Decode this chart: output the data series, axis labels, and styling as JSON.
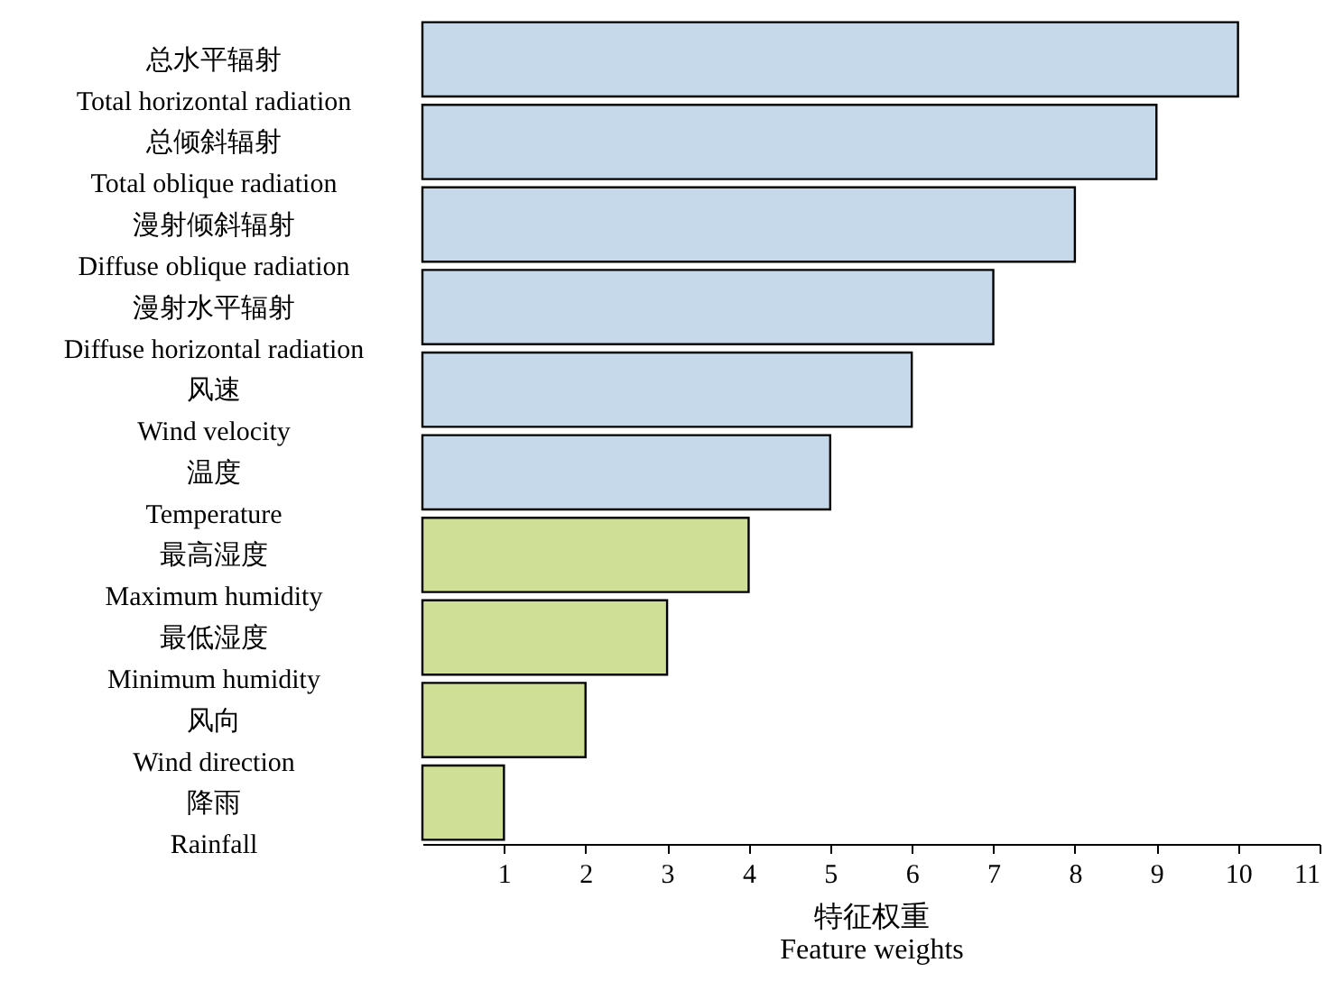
{
  "chart_data": {
    "type": "bar",
    "orientation": "horizontal",
    "categories": [
      "总水平辐射\nTotal horizontal radiation",
      "总倾斜辐射\nTotal oblique radiation",
      "漫射倾斜辐射\nDiffuse oblique radiation",
      "漫射水平辐射\nDiffuse horizontal radiation",
      "风速\nWind velocity",
      "温度\nTemperature",
      "最高湿度\nMaximum humidity",
      "最低湿度\nMinimum humidity",
      "风向\nWind direction",
      "降雨\nRainfall"
    ],
    "values": [
      10,
      9,
      8,
      7,
      6,
      5,
      4,
      3,
      2,
      1
    ],
    "colors": [
      "#c5d9ea",
      "#c5d9ea",
      "#c5d9ea",
      "#c5d9ea",
      "#c5d9ea",
      "#c5d9ea",
      "#d0df96",
      "#d0df96",
      "#d0df96",
      "#d0df96"
    ],
    "xlabel": "特征权重\nFeature weights",
    "xlim": [
      0,
      11
    ],
    "xticks": [
      1,
      2,
      3,
      4,
      5,
      6,
      7,
      8,
      9,
      10,
      11
    ],
    "grid": false
  }
}
